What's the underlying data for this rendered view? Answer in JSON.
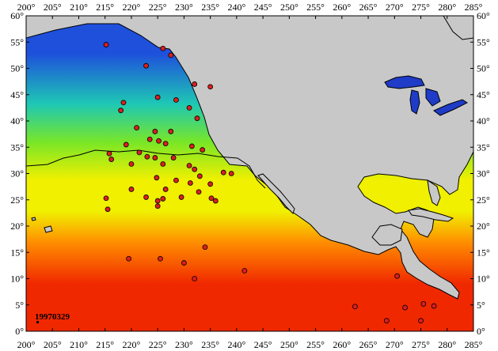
{
  "date_stamp": "19970329",
  "colors": {
    "land": "#c8c8c8",
    "coast": "#000000",
    "lakes": "#1e3cc8",
    "marker": "#dc1e1e",
    "sst_cold": "#1e50dc",
    "sst_cool": "#1ec8b4",
    "sst_mild": "#78e628",
    "sst_warm": "#f0f000",
    "sst_hot": "#ff8c00",
    "sst_hottest": "#f02800"
  },
  "chart_data": {
    "type": "scatter",
    "title": "",
    "xlabel": "",
    "ylabel": "",
    "xlim": [
      200,
      285
    ],
    "ylim": [
      0,
      60
    ],
    "x_ticks": [
      "200°",
      "205°",
      "210°",
      "215°",
      "220°",
      "225°",
      "230°",
      "235°",
      "240°",
      "245°",
      "250°",
      "255°",
      "260°",
      "265°",
      "270°",
      "275°",
      "280°",
      "285°"
    ],
    "y_ticks": [
      "0°",
      "5°",
      "10°",
      "15°",
      "20°",
      "25°",
      "30°",
      "35°",
      "40°",
      "45°",
      "50°",
      "55°",
      "60°"
    ],
    "grid": false,
    "stations": [
      {
        "x": 215.2,
        "y": 54.5
      },
      {
        "x": 226.0,
        "y": 53.8
      },
      {
        "x": 227.5,
        "y": 52.5
      },
      {
        "x": 222.8,
        "y": 50.5
      },
      {
        "x": 232.0,
        "y": 47.0
      },
      {
        "x": 235.0,
        "y": 46.5
      },
      {
        "x": 218.5,
        "y": 43.5
      },
      {
        "x": 225.0,
        "y": 44.5
      },
      {
        "x": 228.5,
        "y": 44.0
      },
      {
        "x": 218.0,
        "y": 42.0
      },
      {
        "x": 231.0,
        "y": 42.5
      },
      {
        "x": 232.5,
        "y": 40.5
      },
      {
        "x": 221.0,
        "y": 38.7
      },
      {
        "x": 224.5,
        "y": 38.0
      },
      {
        "x": 227.5,
        "y": 38.0
      },
      {
        "x": 223.5,
        "y": 36.5
      },
      {
        "x": 225.2,
        "y": 36.2
      },
      {
        "x": 226.5,
        "y": 35.7
      },
      {
        "x": 219.0,
        "y": 35.5
      },
      {
        "x": 231.5,
        "y": 35.2
      },
      {
        "x": 233.5,
        "y": 34.5
      },
      {
        "x": 221.5,
        "y": 34.0
      },
      {
        "x": 223.0,
        "y": 33.2
      },
      {
        "x": 224.5,
        "y": 33.0
      },
      {
        "x": 228.0,
        "y": 33.0
      },
      {
        "x": 215.8,
        "y": 33.8
      },
      {
        "x": 216.2,
        "y": 32.7
      },
      {
        "x": 220.0,
        "y": 31.8
      },
      {
        "x": 226.0,
        "y": 31.8
      },
      {
        "x": 231.0,
        "y": 31.5
      },
      {
        "x": 232.0,
        "y": 30.8
      },
      {
        "x": 237.5,
        "y": 30.2
      },
      {
        "x": 239.0,
        "y": 30.0
      },
      {
        "x": 233.0,
        "y": 29.5
      },
      {
        "x": 224.8,
        "y": 29.2
      },
      {
        "x": 228.5,
        "y": 28.7
      },
      {
        "x": 231.2,
        "y": 28.2
      },
      {
        "x": 235.0,
        "y": 28.0
      },
      {
        "x": 220.0,
        "y": 27.0
      },
      {
        "x": 226.5,
        "y": 27.0
      },
      {
        "x": 232.8,
        "y": 26.5
      },
      {
        "x": 215.2,
        "y": 25.3
      },
      {
        "x": 222.8,
        "y": 25.5
      },
      {
        "x": 225.0,
        "y": 24.8
      },
      {
        "x": 226.0,
        "y": 25.2
      },
      {
        "x": 229.5,
        "y": 25.5
      },
      {
        "x": 235.2,
        "y": 25.3
      },
      {
        "x": 236.0,
        "y": 24.8
      },
      {
        "x": 215.5,
        "y": 23.2
      },
      {
        "x": 225.0,
        "y": 23.8
      },
      {
        "x": 234.0,
        "y": 16.0
      },
      {
        "x": 219.5,
        "y": 13.8
      },
      {
        "x": 225.5,
        "y": 13.8
      },
      {
        "x": 230.0,
        "y": 13.0
      },
      {
        "x": 241.5,
        "y": 11.5
      },
      {
        "x": 232.0,
        "y": 10.0
      },
      {
        "x": 270.5,
        "y": 10.5
      },
      {
        "x": 262.5,
        "y": 4.7
      },
      {
        "x": 272.0,
        "y": 4.5
      },
      {
        "x": 275.5,
        "y": 5.2
      },
      {
        "x": 277.5,
        "y": 4.8
      },
      {
        "x": 268.5,
        "y": 2.0
      },
      {
        "x": 275.0,
        "y": 2.0
      }
    ]
  }
}
